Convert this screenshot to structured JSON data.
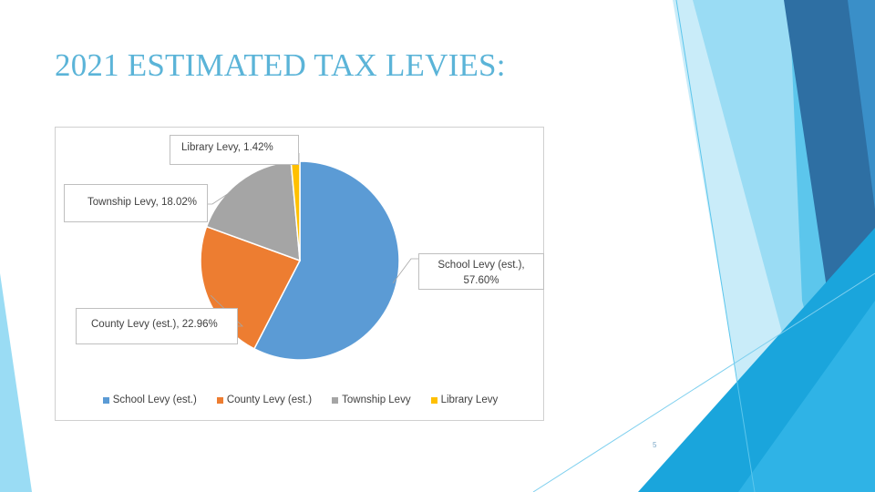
{
  "slide": {
    "title": "2021 ESTIMATED TAX LEVIES:",
    "page_number": "5"
  },
  "theme": {
    "title_color": "#5bb4d8",
    "deco_colors": [
      "#2e6fa3",
      "#3a8fc8",
      "#5cc6ec",
      "#9adcf4",
      "#c9ecf9",
      "#1aa5dc"
    ]
  },
  "chart_data": {
    "type": "pie",
    "title": "",
    "legend_position": "bottom",
    "slices": [
      {
        "label": "School Levy (est.)",
        "value": 57.6,
        "data_label": "School Levy (est.), 57.60%",
        "color": "#5b9bd5"
      },
      {
        "label": "County Levy (est.)",
        "value": 22.96,
        "data_label": "County Levy (est.), 22.96%",
        "color": "#ed7d31"
      },
      {
        "label": "Township Levy",
        "value": 18.02,
        "data_label": "Township Levy, 18.02%",
        "color": "#a5a5a5"
      },
      {
        "label": "Library Levy",
        "value": 1.42,
        "data_label": "Library Levy, 1.42%",
        "color": "#ffc000"
      }
    ]
  }
}
